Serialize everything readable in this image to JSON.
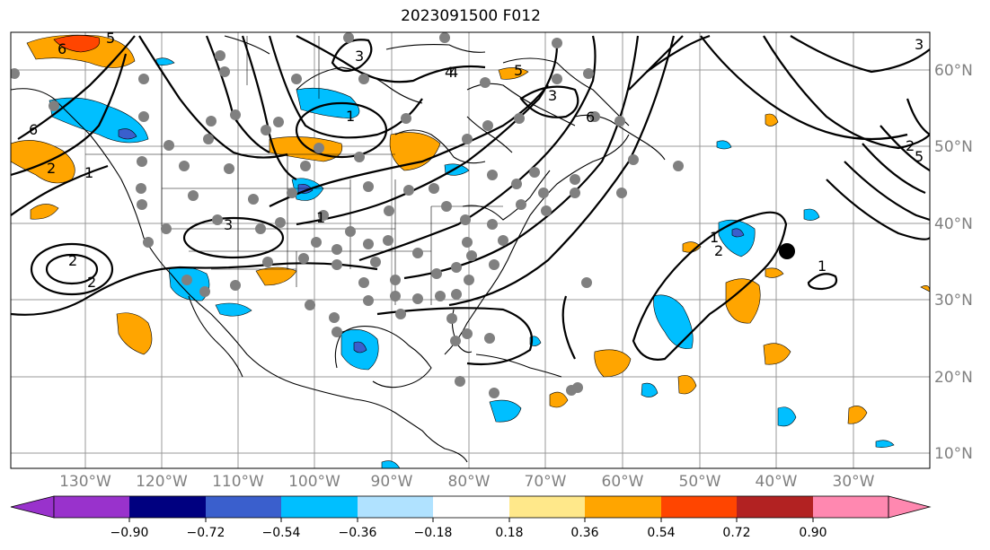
{
  "title": "2023091500 F012",
  "map": {
    "lon_labels": [
      "130°W",
      "120°W",
      "110°W",
      "100°W",
      "90°W",
      "80°W",
      "70°W",
      "60°W",
      "50°W",
      "40°W",
      "30°W"
    ],
    "lat_labels": [
      "60°N",
      "50°N",
      "40°N",
      "30°N",
      "20°N",
      "10°N"
    ],
    "contour_labels": [
      "6",
      "5",
      "4",
      "3",
      "2",
      "1",
      "6",
      "3",
      "2",
      "1",
      "2",
      "3",
      "1",
      "2",
      "4",
      "5",
      "3",
      "6",
      "5",
      "2",
      "1",
      "1"
    ],
    "colors": {
      "land_line": "#000000",
      "grid": "#999999",
      "station_dot": "#808080",
      "marker": "#000000"
    }
  },
  "colorbar": {
    "tick_labels": [
      "−0.90",
      "−0.72",
      "−0.54",
      "−0.36",
      "−0.18",
      "0.18",
      "0.36",
      "0.54",
      "0.72",
      "0.90"
    ],
    "colors": [
      "#9932cc",
      "#000080",
      "#3a5fcd",
      "#00bfff",
      "#b0e2ff",
      "#ffffff",
      "#ffe88a",
      "#ffa500",
      "#ff4500",
      "#b22222",
      "#ff88b0"
    ]
  }
}
